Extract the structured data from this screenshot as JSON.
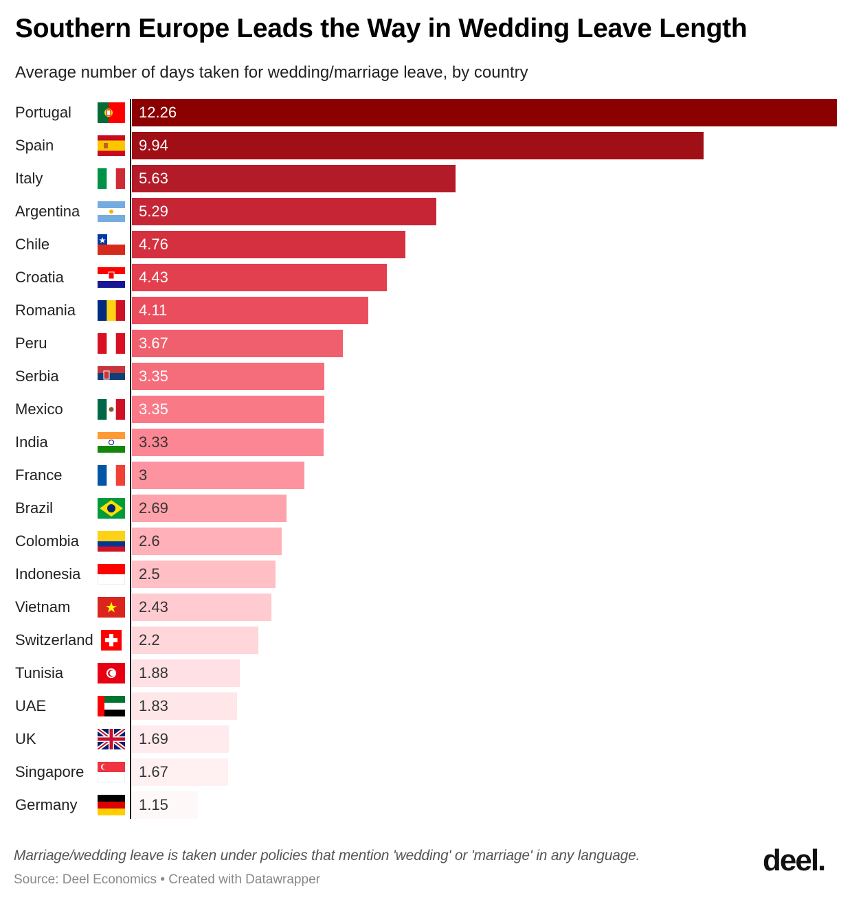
{
  "header": {
    "title": "Southern Europe Leads the Way in Wedding Leave Length",
    "subtitle": "Average number of days taken for wedding/marriage leave, by country"
  },
  "footer": {
    "note": "Marriage/wedding leave is taken under policies that mention 'wedding' or 'marriage' in any language.",
    "source": "Source: Deel Economics • Created with Datawrapper",
    "logo": "deel."
  },
  "chart_data": {
    "type": "bar",
    "orientation": "horizontal",
    "title": "Southern Europe Leads the Way in Wedding Leave Length",
    "subtitle": "Average number of days taken for wedding/marriage leave, by country",
    "xlabel": "",
    "ylabel": "",
    "xlim": [
      0,
      12.26
    ],
    "grid": false,
    "legend": null,
    "categories": [
      "Portugal",
      "Spain",
      "Italy",
      "Argentina",
      "Chile",
      "Croatia",
      "Romania",
      "Peru",
      "Serbia",
      "Mexico",
      "India",
      "France",
      "Brazil",
      "Colombia",
      "Indonesia",
      "Vietnam",
      "Switzerland",
      "Tunisia",
      "UAE",
      "UK",
      "Singapore",
      "Germany"
    ],
    "values": [
      12.26,
      9.94,
      5.63,
      5.29,
      4.76,
      4.43,
      4.11,
      3.67,
      3.35,
      3.35,
      3.33,
      3,
      2.69,
      2.6,
      2.5,
      2.43,
      2.2,
      1.88,
      1.83,
      1.69,
      1.67,
      1.15
    ],
    "value_labels": [
      "12.26",
      "9.94",
      "5.63",
      "5.29",
      "4.76",
      "4.43",
      "4.11",
      "3.67",
      "3.35",
      "3.35",
      "3.33",
      "3",
      "2.69",
      "2.6",
      "2.5",
      "2.43",
      "2.2",
      "1.88",
      "1.83",
      "1.69",
      "1.67",
      "1.15"
    ],
    "colors": [
      "#8b0000",
      "#a00e16",
      "#b31b28",
      "#c52535",
      "#d5303f",
      "#e3404f",
      "#ea4e5e",
      "#f05f6d",
      "#f56d7b",
      "#f97a86",
      "#fc8693",
      "#fd939f",
      "#fea2ab",
      "#ffb0b8",
      "#ffbfc5",
      "#ffcbd0",
      "#ffd6da",
      "#ffe0e4",
      "#ffe6e9",
      "#ffeaed",
      "#fff0f2",
      "#fef8f8"
    ],
    "flags": [
      "flag-portugal-icon",
      "flag-spain-icon",
      "flag-italy-icon",
      "flag-argentina-icon",
      "flag-chile-icon",
      "flag-croatia-icon",
      "flag-romania-icon",
      "flag-peru-icon",
      "flag-serbia-icon",
      "flag-mexico-icon",
      "flag-india-icon",
      "flag-france-icon",
      "flag-brazil-icon",
      "flag-colombia-icon",
      "flag-indonesia-icon",
      "flag-vietnam-icon",
      "flag-switzerland-icon",
      "flag-tunisia-icon",
      "flag-uae-icon",
      "flag-uk-icon",
      "flag-singapore-icon",
      "flag-germany-icon"
    ]
  }
}
